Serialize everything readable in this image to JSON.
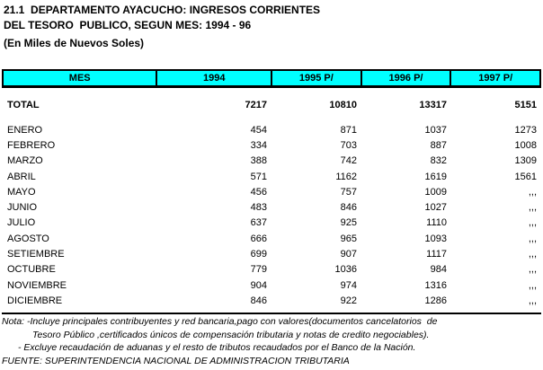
{
  "page": {
    "title_line1": "21.1  DEPARTAMENTO AYACUCHO: INGRESOS CORRIENTES",
    "title_line2": "DEL TESORO  PUBLICO, SEGUN MES: 1994 - 96",
    "unit_label": "(En Miles de Nuevos Soles)"
  },
  "table": {
    "header_bg_color": "#00ffff",
    "columns": [
      "MES",
      "1994",
      "1995 P/",
      "1996 P/",
      "1997 P/"
    ],
    "total_row": {
      "label": "TOTAL",
      "values": [
        "7217",
        "10810",
        "13317",
        "5151"
      ]
    },
    "rows": [
      {
        "label": "ENERO",
        "values": [
          "454",
          "871",
          "1037",
          "1273"
        ]
      },
      {
        "label": "FEBRERO",
        "values": [
          "334",
          "703",
          "887",
          "1008"
        ]
      },
      {
        "label": "MARZO",
        "values": [
          "388",
          "742",
          "832",
          "1309"
        ]
      },
      {
        "label": "ABRIL",
        "values": [
          "571",
          "1162",
          "1619",
          "1561"
        ]
      },
      {
        "label": "MAYO",
        "values": [
          "456",
          "757",
          "1009",
          ",,,"
        ]
      },
      {
        "label": "JUNIO",
        "values": [
          "483",
          "846",
          "1027",
          ",,,"
        ]
      },
      {
        "label": "JULIO",
        "values": [
          "637",
          "925",
          "1110",
          ",,,"
        ]
      },
      {
        "label": "AGOSTO",
        "values": [
          "666",
          "965",
          "1093",
          ",,,"
        ]
      },
      {
        "label": "SETIEMBRE",
        "values": [
          "699",
          "907",
          "1117",
          ",,,"
        ]
      },
      {
        "label": "OCTUBRE",
        "values": [
          "779",
          "1036",
          "984",
          ",,,"
        ]
      },
      {
        "label": "NOVIEMBRE",
        "values": [
          "904",
          "974",
          "1316",
          ",,,"
        ]
      },
      {
        "label": "DICIEMBRE",
        "values": [
          "846",
          "922",
          "1286",
          ",,,"
        ]
      }
    ]
  },
  "notes": {
    "line1": "Nota: -Incluye principales contribuyentes y red bancaria,pago con valores(documentos cancelatorios  de",
    "line2": "Tesoro Público ,certificados únicos de compensación tributaria y notas de credito negociables).",
    "line3": "- Excluye recaudación de aduanas y el resto de tributos recaudados por el Banco de la Nación.",
    "source": "FUENTE: SUPERINTENDENCIA NACIONAL DE ADMINISTRACION TRIBUTARIA"
  }
}
